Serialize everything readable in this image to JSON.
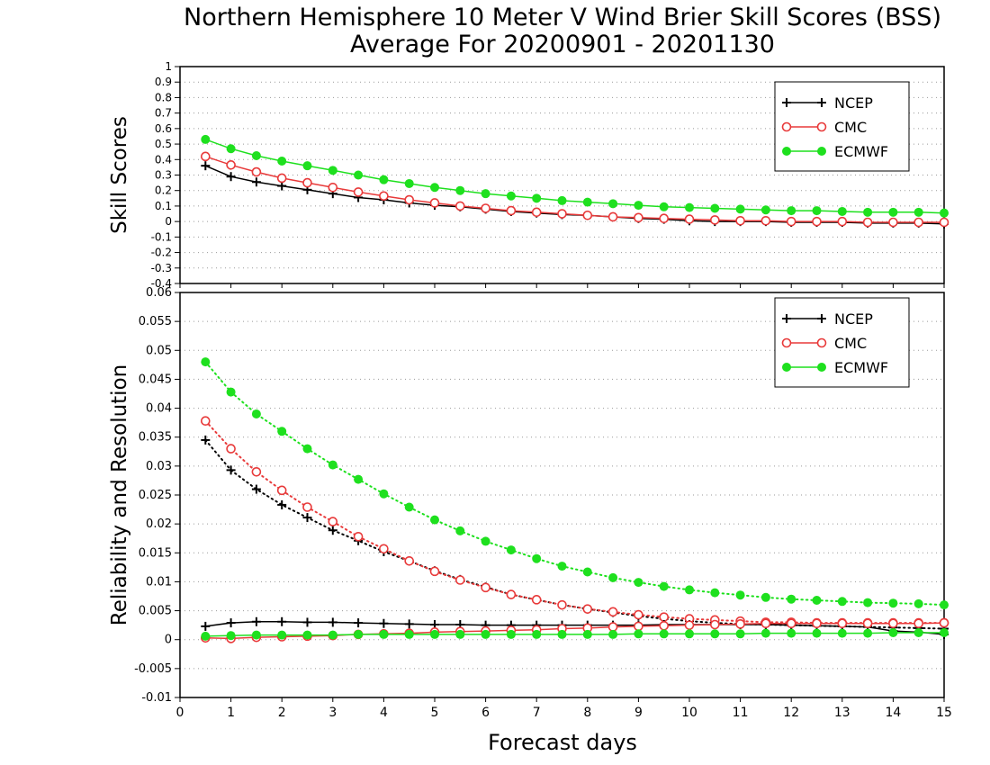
{
  "title": {
    "line1": "Northern Hemisphere 10 Meter V Wind Brier Skill Scores (BSS)",
    "line2": "Average For 20200901 - 20201130"
  },
  "xlabel": "Forecast days",
  "colors": {
    "NCEP": "#000000",
    "CMC": "#e83a3a",
    "ECMWF": "#1ee01e"
  },
  "chart_data": [
    {
      "type": "line",
      "ylabel": "Skill Scores",
      "xlim": [
        0,
        15
      ],
      "ylim": [
        -0.4,
        1
      ],
      "xticks": [
        "0",
        "1",
        "2",
        "3",
        "4",
        "5",
        "6",
        "7",
        "8",
        "9",
        "10",
        "11",
        "12",
        "13",
        "14",
        "15"
      ],
      "yticks": [
        "-0.4",
        "-0.3",
        "-0.2",
        "-0.1",
        "0",
        "0.1",
        "0.2",
        "0.3",
        "0.4",
        "0.5",
        "0.6",
        "0.7",
        "0.8",
        "0.9",
        "1"
      ],
      "grid": true,
      "legend_position": "top-right",
      "x": [
        0.5,
        1,
        1.5,
        2,
        2.5,
        3,
        3.5,
        4,
        4.5,
        5,
        5.5,
        6,
        6.5,
        7,
        7.5,
        8,
        8.5,
        9,
        9.5,
        10,
        10.5,
        11,
        11.5,
        12,
        12.5,
        13,
        13.5,
        14,
        14.5,
        15
      ],
      "series": [
        {
          "name": "NCEP",
          "marker": "plus",
          "style": "solid",
          "values": [
            0.36,
            0.29,
            0.255,
            0.23,
            0.205,
            0.18,
            0.155,
            0.14,
            0.12,
            0.105,
            0.095,
            0.08,
            0.065,
            0.055,
            0.045,
            0.04,
            0.03,
            0.02,
            0.015,
            0.005,
            0.0,
            0.0,
            0.0,
            -0.005,
            -0.005,
            -0.005,
            -0.01,
            -0.01,
            -0.01,
            -0.015
          ]
        },
        {
          "name": "CMC",
          "marker": "open-circle",
          "style": "solid",
          "values": [
            0.42,
            0.365,
            0.32,
            0.28,
            0.25,
            0.22,
            0.19,
            0.165,
            0.14,
            0.12,
            0.1,
            0.085,
            0.07,
            0.06,
            0.05,
            0.04,
            0.03,
            0.025,
            0.02,
            0.015,
            0.01,
            0.005,
            0.005,
            0.0,
            0.0,
            0.0,
            -0.005,
            -0.005,
            -0.005,
            -0.005
          ]
        },
        {
          "name": "ECMWF",
          "marker": "filled-circle",
          "style": "solid",
          "values": [
            0.53,
            0.47,
            0.425,
            0.39,
            0.36,
            0.33,
            0.3,
            0.27,
            0.245,
            0.22,
            0.2,
            0.18,
            0.165,
            0.15,
            0.135,
            0.125,
            0.115,
            0.105,
            0.095,
            0.09,
            0.085,
            0.08,
            0.075,
            0.07,
            0.07,
            0.065,
            0.06,
            0.06,
            0.06,
            0.055
          ]
        }
      ]
    },
    {
      "type": "line",
      "ylabel": "Reliability and Resolution",
      "xlim": [
        0,
        15
      ],
      "ylim": [
        -0.01,
        0.06
      ],
      "xticks": [
        "0",
        "1",
        "2",
        "3",
        "4",
        "5",
        "6",
        "7",
        "8",
        "9",
        "10",
        "11",
        "12",
        "13",
        "14",
        "15"
      ],
      "yticks": [
        "-0.01",
        "-0.005",
        "0",
        "0.005",
        "0.01",
        "0.015",
        "0.02",
        "0.025",
        "0.03",
        "0.035",
        "0.04",
        "0.045",
        "0.05",
        "0.055",
        "0.06"
      ],
      "grid": true,
      "legend_position": "top-right",
      "x": [
        0.5,
        1,
        1.5,
        2,
        2.5,
        3,
        3.5,
        4,
        4.5,
        5,
        5.5,
        6,
        6.5,
        7,
        7.5,
        8,
        8.5,
        9,
        9.5,
        10,
        10.5,
        11,
        11.5,
        12,
        12.5,
        13,
        13.5,
        14,
        14.5,
        15
      ],
      "series": [
        {
          "name": "NCEP",
          "marker": "plus",
          "style": "dotted",
          "values": [
            0.0345,
            0.0293,
            0.026,
            0.0233,
            0.0211,
            0.0189,
            0.0171,
            0.0152,
            0.0136,
            0.0119,
            0.0104,
            0.0091,
            0.0078,
            0.0069,
            0.006,
            0.0053,
            0.0047,
            0.0041,
            0.0036,
            0.0032,
            0.0029,
            0.0027,
            0.0026,
            0.0025,
            0.0024,
            0.0023,
            0.0022,
            0.0021,
            0.002,
            0.0019
          ]
        },
        {
          "name": "CMC",
          "marker": "open-circle",
          "style": "dotted",
          "values": [
            0.0378,
            0.033,
            0.029,
            0.0258,
            0.0229,
            0.0204,
            0.0178,
            0.0157,
            0.0136,
            0.0118,
            0.0103,
            0.009,
            0.0078,
            0.0069,
            0.006,
            0.0053,
            0.0048,
            0.0043,
            0.0039,
            0.0036,
            0.0034,
            0.0032,
            0.003,
            0.003,
            0.0029,
            0.0029,
            0.0029,
            0.0029,
            0.0029,
            0.0029
          ]
        },
        {
          "name": "ECMWF",
          "marker": "filled-circle",
          "style": "dotted",
          "values": [
            0.048,
            0.0428,
            0.039,
            0.036,
            0.033,
            0.0302,
            0.0277,
            0.0252,
            0.0229,
            0.0207,
            0.0188,
            0.017,
            0.0155,
            0.014,
            0.0127,
            0.0117,
            0.0107,
            0.0099,
            0.0092,
            0.0086,
            0.0081,
            0.0077,
            0.0073,
            0.007,
            0.0068,
            0.0066,
            0.0064,
            0.0063,
            0.0062,
            0.006
          ]
        },
        {
          "name": "NCEP",
          "marker": "plus",
          "style": "solid",
          "legend": false,
          "values": [
            0.0023,
            0.0029,
            0.0031,
            0.0031,
            0.003,
            0.003,
            0.0029,
            0.0028,
            0.0027,
            0.0026,
            0.0026,
            0.0025,
            0.0025,
            0.0025,
            0.0025,
            0.0025,
            0.0025,
            0.0025,
            0.0026,
            0.0026,
            0.0026,
            0.0026,
            0.0026,
            0.0025,
            0.0024,
            0.0023,
            0.0022,
            0.0015,
            0.0013,
            0.0009
          ]
        },
        {
          "name": "CMC",
          "marker": "open-circle",
          "style": "solid",
          "legend": false,
          "values": [
            0.0003,
            0.0002,
            0.0004,
            0.0005,
            0.0006,
            0.0007,
            0.0009,
            0.001,
            0.0011,
            0.0013,
            0.0014,
            0.0015,
            0.0016,
            0.0017,
            0.0019,
            0.002,
            0.0022,
            0.0023,
            0.0024,
            0.0025,
            0.0026,
            0.0027,
            0.0028,
            0.0028,
            0.0028,
            0.0028,
            0.0028,
            0.0028,
            0.0028,
            0.0029
          ]
        },
        {
          "name": "ECMWF",
          "marker": "filled-circle",
          "style": "solid",
          "legend": false,
          "values": [
            0.0006,
            0.0007,
            0.0008,
            0.0008,
            0.0008,
            0.0008,
            0.0009,
            0.0009,
            0.0009,
            0.0009,
            0.0009,
            0.0009,
            0.0009,
            0.0009,
            0.0009,
            0.0009,
            0.0009,
            0.001,
            0.001,
            0.001,
            0.001,
            0.001,
            0.0011,
            0.0011,
            0.0011,
            0.0011,
            0.0011,
            0.0012,
            0.0012,
            0.0012
          ]
        }
      ]
    }
  ]
}
